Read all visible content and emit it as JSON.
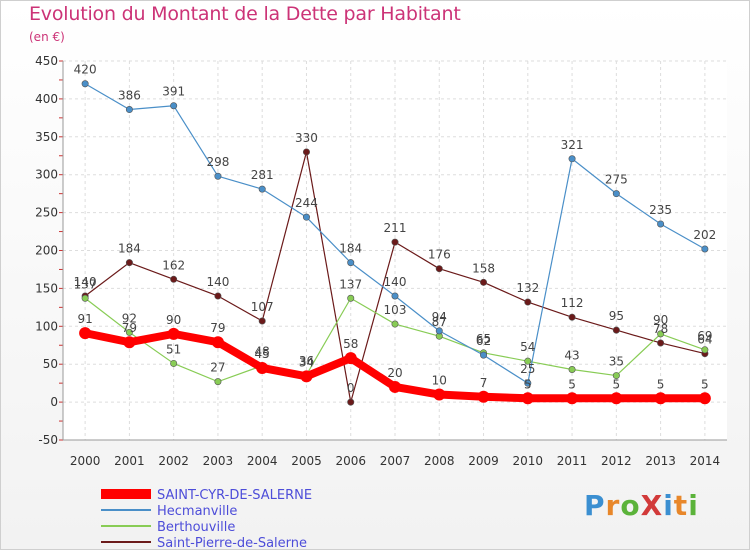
{
  "title": "Evolution du Montant de la Dette par Habitant",
  "unit_label": "(en €)",
  "logo_text": "ProXiti",
  "chart_data": {
    "type": "line",
    "title": "Evolution du Montant de la Dette par Habitant",
    "ylabel": "(en €)",
    "xlabel": "",
    "ylim": [
      -50,
      450
    ],
    "yticks": [
      -50,
      0,
      50,
      100,
      150,
      200,
      250,
      300,
      350,
      400,
      450
    ],
    "grid": true,
    "legend_position": "bottom-left",
    "categories": [
      "2000",
      "2001",
      "2002",
      "2003",
      "2004",
      "2005",
      "2006",
      "2007",
      "2008",
      "2009",
      "2010",
      "2011",
      "2012",
      "2013",
      "2014"
    ],
    "series": [
      {
        "name": "Saint-Pierre-de-Salerne",
        "color": "#6b1a1a",
        "width": 1.2,
        "values": [
          140,
          184,
          162,
          140,
          107,
          330,
          0,
          211,
          176,
          158,
          132,
          112,
          95,
          78,
          64
        ],
        "labels": [
          "140",
          "184",
          "162",
          "140",
          "107",
          "330",
          "0",
          "211",
          "176",
          "158",
          "132",
          "112",
          "95",
          "78",
          "64"
        ]
      },
      {
        "name": "Berthouville",
        "color": "#88cc55",
        "width": 1.2,
        "values": [
          137,
          92,
          51,
          27,
          48,
          36,
          137,
          103,
          87,
          65,
          54,
          43,
          35,
          90,
          69
        ],
        "labels": [
          "137",
          "92",
          "51",
          "27",
          "48",
          "36",
          "137",
          "103",
          "87",
          "65",
          "54",
          "43",
          "35",
          "90",
          "69"
        ]
      },
      {
        "name": "Hecmanville",
        "color": "#4a8fc8",
        "width": 1.2,
        "values": [
          420,
          386,
          391,
          298,
          281,
          244,
          184,
          140,
          94,
          62,
          25,
          321,
          275,
          235,
          202
        ],
        "labels": [
          "420",
          "386",
          "391",
          "298",
          "281",
          "244",
          "184",
          "140",
          "94",
          "62",
          "25",
          "321",
          "275",
          "235",
          "202"
        ]
      },
      {
        "name": "SAINT-CYR-DE-SALERNE",
        "color": "#ff0000",
        "width": 8,
        "values": [
          91,
          79,
          90,
          79,
          45,
          34,
          58,
          20,
          10,
          7,
          5,
          5,
          5,
          5,
          5
        ],
        "labels": [
          "91",
          "79",
          "90",
          "79",
          "45",
          "34",
          "58",
          "20",
          "10",
          "7",
          "5",
          "5",
          "5",
          "5",
          "5"
        ]
      }
    ],
    "legend": [
      {
        "name": "SAINT-CYR-DE-SALERNE",
        "color": "#ff0000"
      },
      {
        "name": "Hecmanville",
        "color": "#4a8fc8"
      },
      {
        "name": "Berthouville",
        "color": "#88cc55"
      },
      {
        "name": "Saint-Pierre-de-Salerne",
        "color": "#6b1a1a"
      }
    ],
    "legend_text_color": "#4d4dd9"
  }
}
